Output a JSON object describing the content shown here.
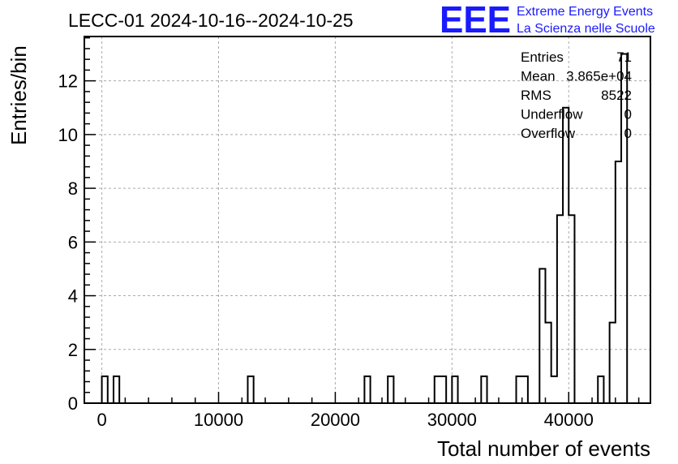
{
  "chart_data": {
    "type": "bar",
    "title": "LECC-01 2024-10-16--2024-10-25",
    "xlabel": "Total number of events",
    "ylabel": "Entries/bin",
    "xlim": [
      -1500,
      47000
    ],
    "ylim": [
      0,
      13.65
    ],
    "xticks": [
      0,
      10000,
      20000,
      30000,
      40000
    ],
    "yticks": [
      0,
      2,
      4,
      6,
      8,
      10,
      12
    ],
    "grid": true,
    "bin_width": 500,
    "bins": [
      {
        "x0": 0,
        "count": 1
      },
      {
        "x0": 1000,
        "count": 1
      },
      {
        "x0": 12500,
        "count": 1
      },
      {
        "x0": 22500,
        "count": 1
      },
      {
        "x0": 24500,
        "count": 1
      },
      {
        "x0": 28500,
        "count": 1
      },
      {
        "x0": 29000,
        "count": 1
      },
      {
        "x0": 30000,
        "count": 1
      },
      {
        "x0": 32500,
        "count": 1
      },
      {
        "x0": 35500,
        "count": 1
      },
      {
        "x0": 36000,
        "count": 1
      },
      {
        "x0": 37500,
        "count": 5
      },
      {
        "x0": 38000,
        "count": 3
      },
      {
        "x0": 38500,
        "count": 1
      },
      {
        "x0": 39000,
        "count": 7
      },
      {
        "x0": 39500,
        "count": 11
      },
      {
        "x0": 40000,
        "count": 7
      },
      {
        "x0": 42500,
        "count": 1
      },
      {
        "x0": 43500,
        "count": 3
      },
      {
        "x0": 44000,
        "count": 9
      },
      {
        "x0": 44500,
        "count": 13
      }
    ],
    "stats": [
      {
        "label": "Entries",
        "value": "71"
      },
      {
        "label": "Mean",
        "value": "3.865e+04"
      },
      {
        "label": "RMS",
        "value": "8522"
      },
      {
        "label": "Underflow",
        "value": "0"
      },
      {
        "label": "Overflow",
        "value": "0"
      }
    ]
  },
  "logo": {
    "mark": "EEE",
    "line1": "Extreme Energy Events",
    "line2": "La Scienza nelle Scuole"
  },
  "colors": {
    "line": "#000000",
    "grid": "#aaaaaa",
    "logo": "#1a1aff"
  }
}
